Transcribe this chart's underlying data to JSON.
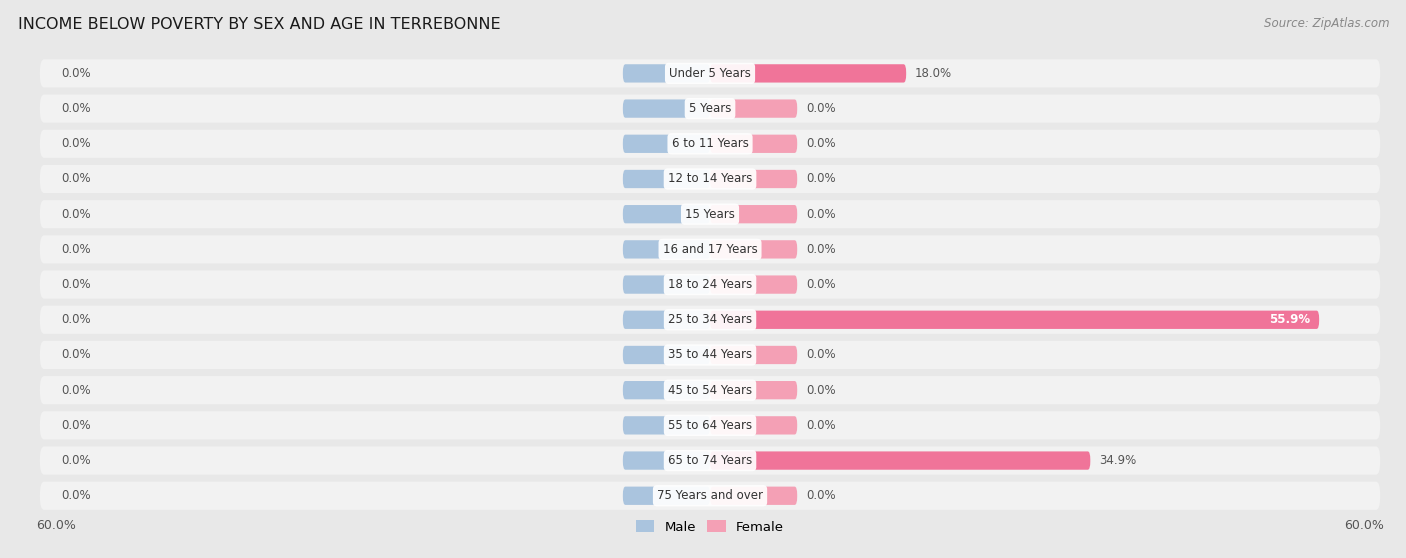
{
  "title": "INCOME BELOW POVERTY BY SEX AND AGE IN TERREBONNE",
  "source": "Source: ZipAtlas.com",
  "categories": [
    "Under 5 Years",
    "5 Years",
    "6 to 11 Years",
    "12 to 14 Years",
    "15 Years",
    "16 and 17 Years",
    "18 to 24 Years",
    "25 to 34 Years",
    "35 to 44 Years",
    "45 to 54 Years",
    "55 to 64 Years",
    "65 to 74 Years",
    "75 Years and over"
  ],
  "male_values": [
    0.0,
    0.0,
    0.0,
    0.0,
    0.0,
    0.0,
    0.0,
    0.0,
    0.0,
    0.0,
    0.0,
    0.0,
    0.0
  ],
  "female_values": [
    18.0,
    0.0,
    0.0,
    0.0,
    0.0,
    0.0,
    0.0,
    55.9,
    0.0,
    0.0,
    0.0,
    34.9,
    0.0
  ],
  "male_color": "#aac4de",
  "female_color": "#f4a0b5",
  "female_color_bright": "#f07499",
  "axis_limit": 60.0,
  "min_bar": 8.0,
  "background_color": "#e8e8e8",
  "row_bg_color": "#f2f2f2",
  "bar_height": 0.52,
  "title_fontsize": 11.5,
  "label_fontsize": 8.5,
  "tick_fontsize": 9,
  "source_fontsize": 8.5,
  "legend_fontsize": 9.5
}
